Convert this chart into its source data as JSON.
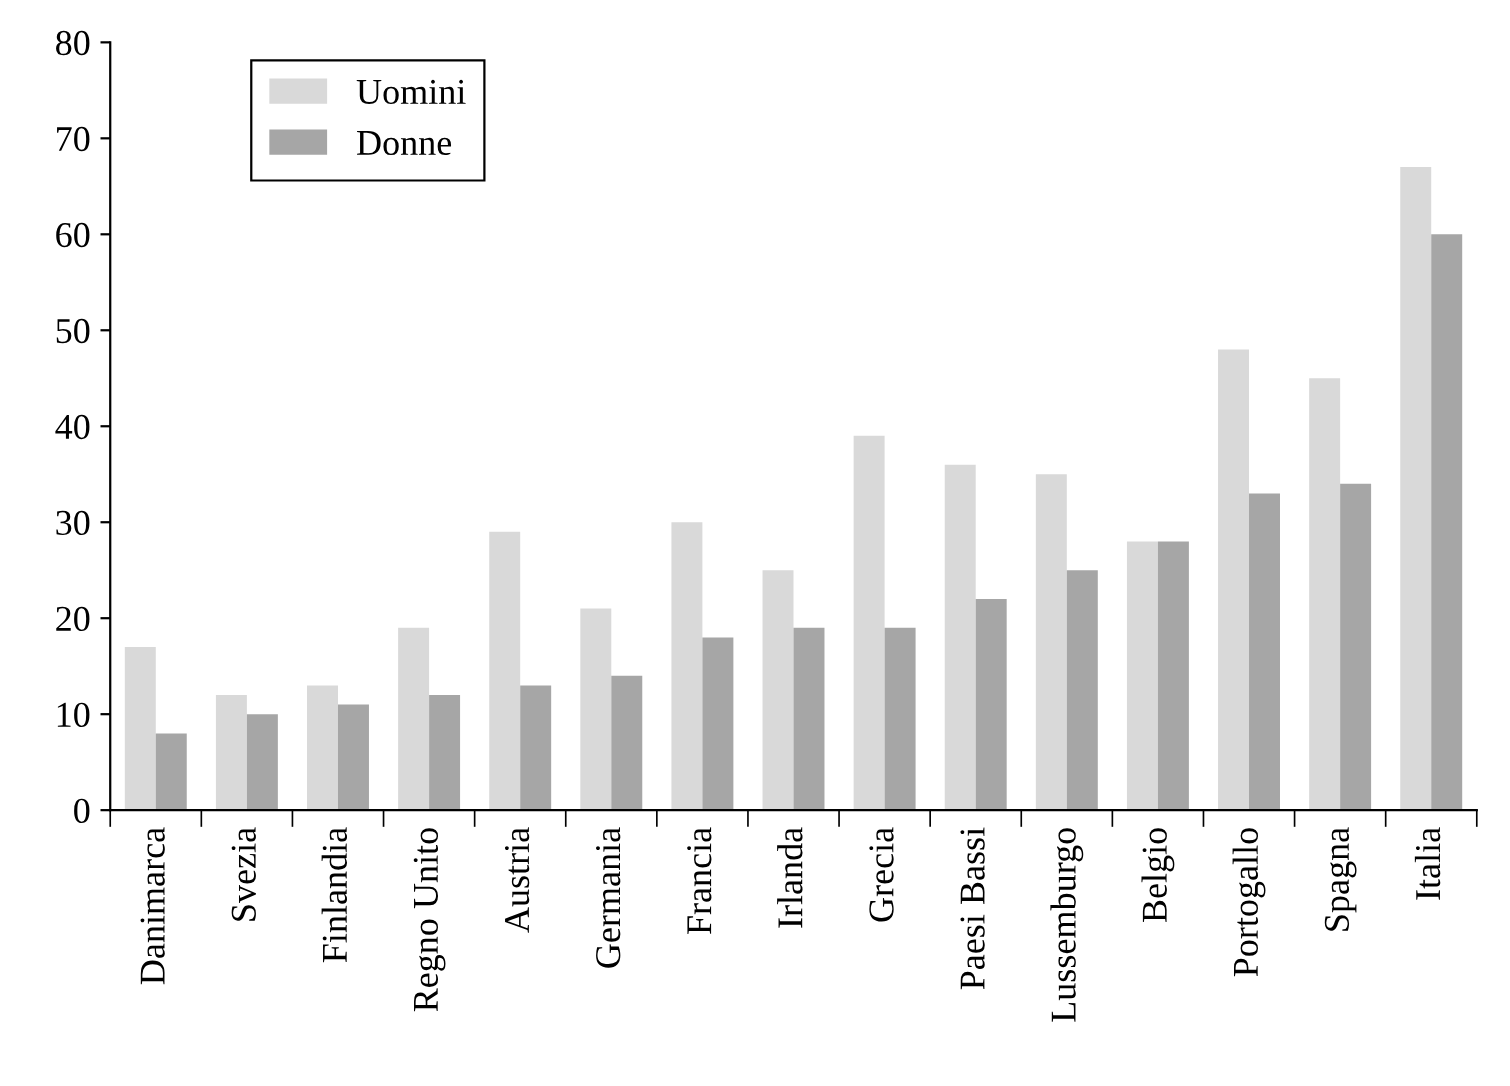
{
  "chart_data": {
    "type": "bar",
    "categories": [
      "Danimarca",
      "Svezia",
      "Finlandia",
      "Regno Unito",
      "Austria",
      "Germania",
      "Francia",
      "Irlanda",
      "Grecia",
      "Paesi Bassi",
      "Lussemburgo",
      "Belgio",
      "Portogallo",
      "Spagna",
      "Italia"
    ],
    "series": [
      {
        "name": "Uomini",
        "color": "#d9d9d9",
        "values": [
          17,
          12,
          13,
          19,
          29,
          21,
          30,
          25,
          39,
          36,
          35,
          28,
          48,
          45,
          67
        ]
      },
      {
        "name": "Donne",
        "color": "#a6a6a6",
        "values": [
          8,
          10,
          11,
          12,
          13,
          14,
          18,
          19,
          19,
          22,
          25,
          28,
          33,
          34,
          60
        ]
      }
    ],
    "ylim": [
      0,
      80
    ],
    "yticks": [
      0,
      10,
      20,
      30,
      40,
      50,
      60,
      70,
      80
    ],
    "grid": false,
    "legend": "top left"
  }
}
